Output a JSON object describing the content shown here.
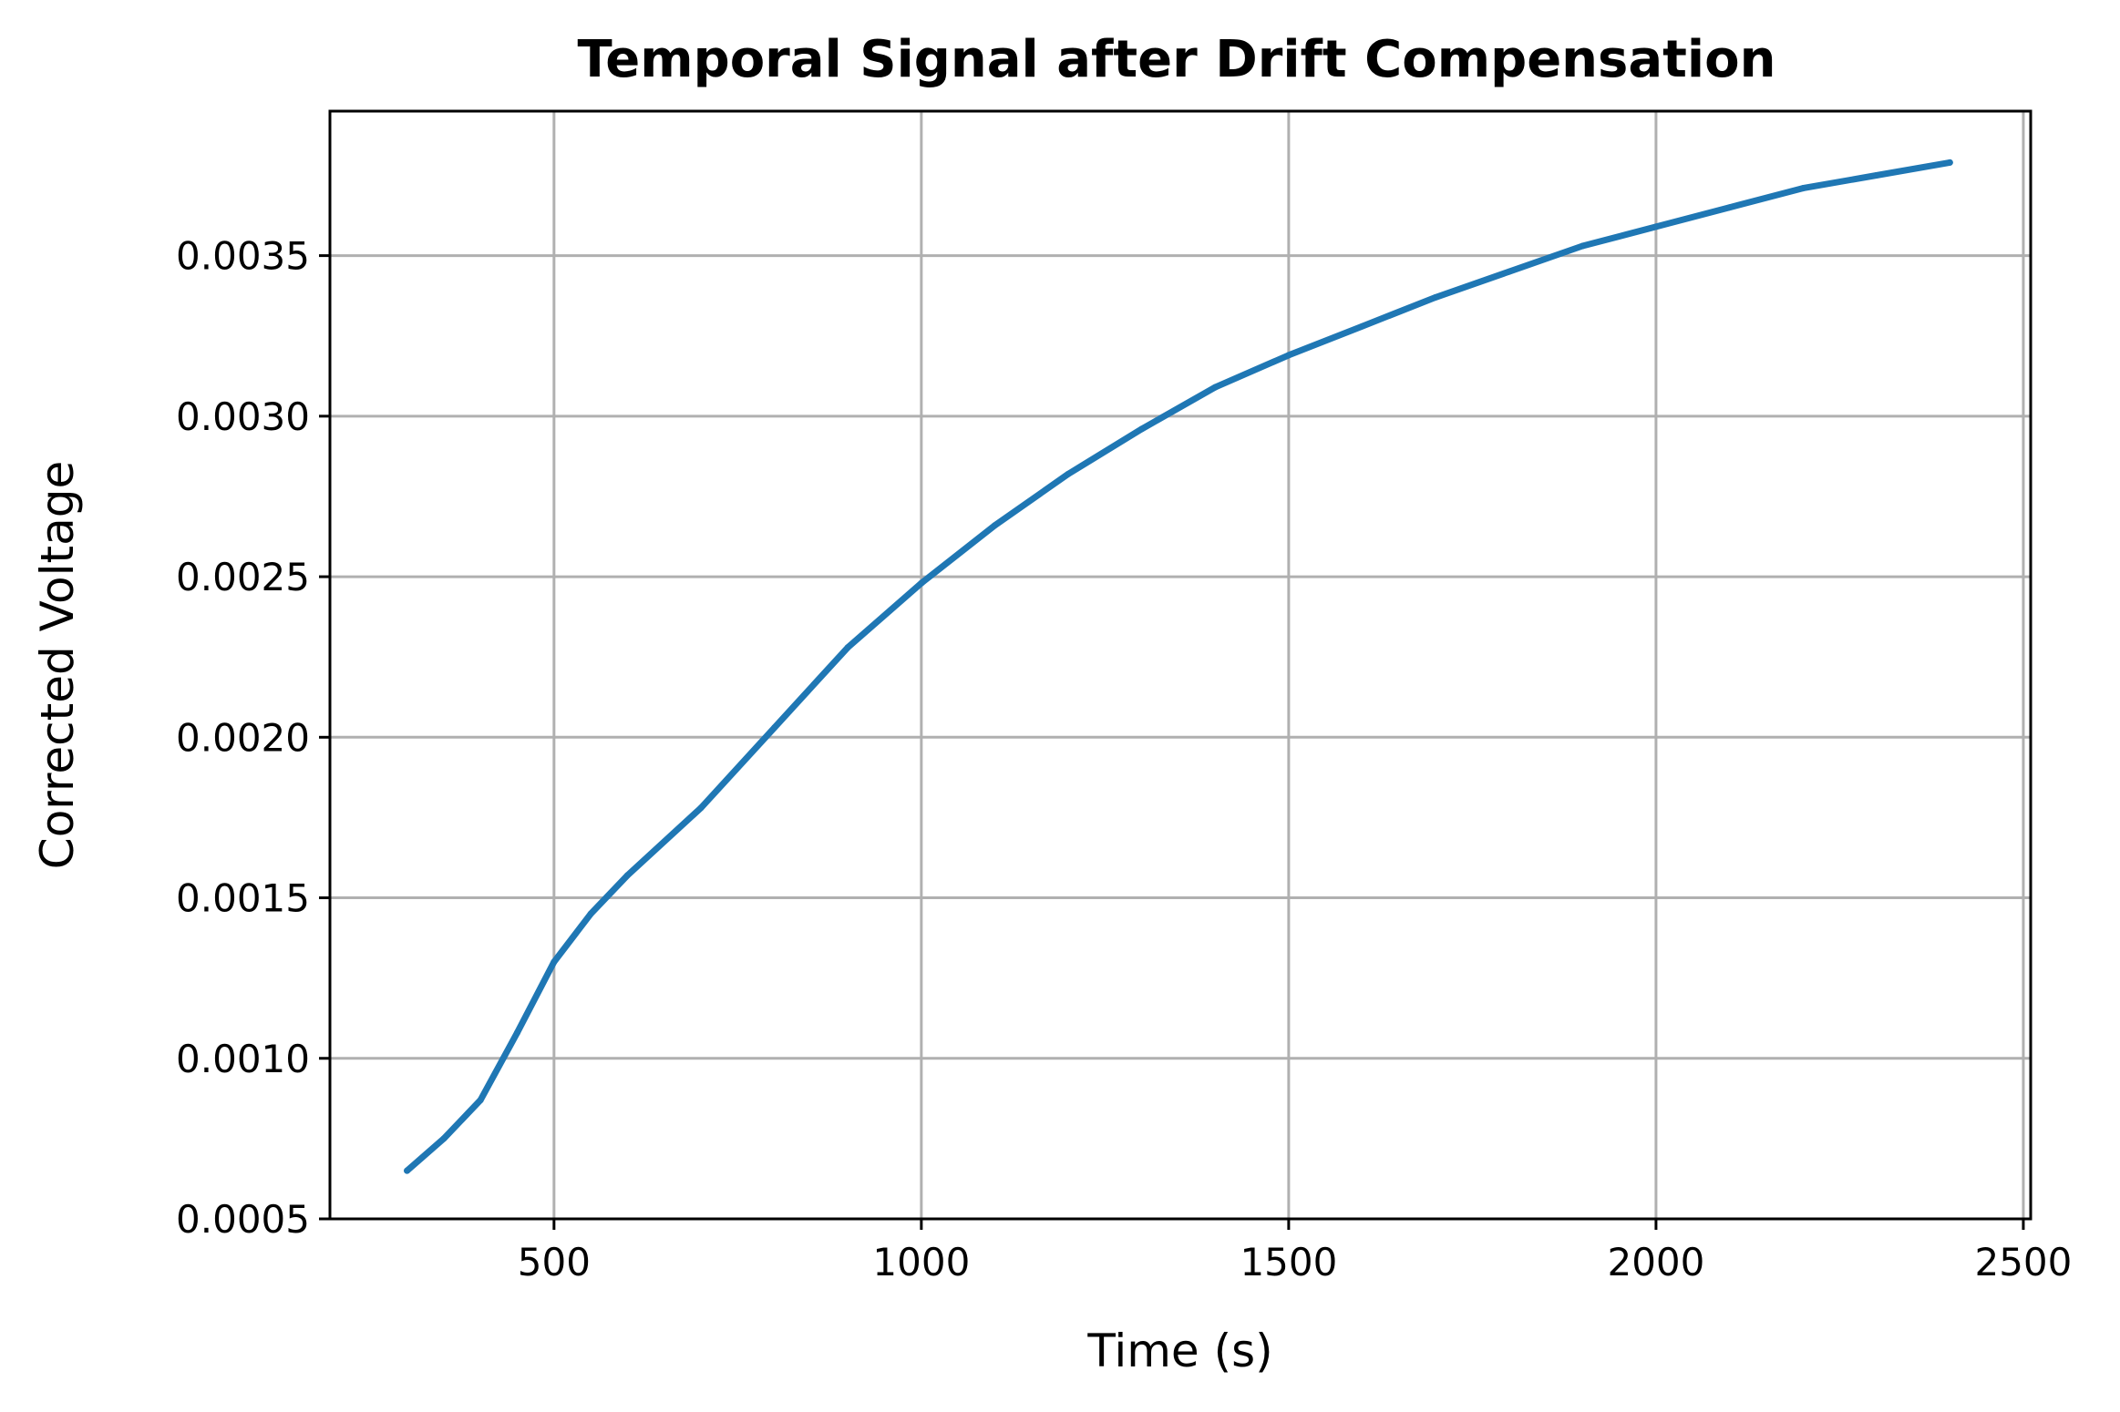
{
  "chart_data": {
    "type": "line",
    "title": "Temporal Signal after Drift Compensation",
    "xlabel": "Time (s)",
    "ylabel": "Corrected Voltage",
    "xlim": [
      195,
      2510
    ],
    "ylim": [
      0.0005,
      0.00395
    ],
    "xticks": [
      500,
      1000,
      1500,
      2000,
      2500
    ],
    "xtick_labels": [
      "500",
      "1000",
      "1500",
      "2000",
      "2500"
    ],
    "yticks": [
      0.0005,
      0.001,
      0.0015,
      0.002,
      0.0025,
      0.003,
      0.0035
    ],
    "ytick_labels": [
      "0.0005",
      "0.0010",
      "0.0015",
      "0.0020",
      "0.0025",
      "0.0030",
      "0.0035"
    ],
    "grid": true,
    "colors": {
      "line": "#1f77b4",
      "grid": "#b0b0b0",
      "axes": "#000000"
    },
    "series": [
      {
        "x": [
          300,
          350,
          400,
          450,
          500,
          550,
          600,
          700,
          800,
          900,
          1000,
          1100,
          1200,
          1300,
          1400,
          1500,
          1600,
          1700,
          1800,
          1900,
          2000,
          2100,
          2200,
          2300,
          2400
        ],
        "values": [
          0.00065,
          0.00075,
          0.00087,
          0.00108,
          0.0013,
          0.00145,
          0.00157,
          0.00178,
          0.00203,
          0.00228,
          0.00248,
          0.00266,
          0.00282,
          0.00296,
          0.00309,
          0.00319,
          0.00328,
          0.00337,
          0.00345,
          0.00353,
          0.00359,
          0.00365,
          0.00371,
          0.00375,
          0.00379
        ]
      }
    ]
  }
}
